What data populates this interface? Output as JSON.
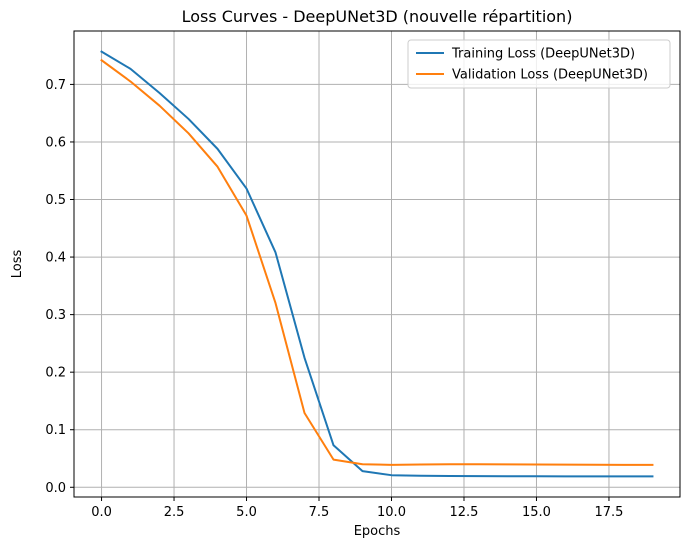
{
  "chart_data": {
    "type": "line",
    "title": "Loss Curves - DeepUNet3D (nouvelle répartition)",
    "xlabel": "Epochs",
    "ylabel": "Loss",
    "xlim": [
      -0.95,
      19.95
    ],
    "ylim": [
      -0.0169,
      0.7928
    ],
    "xticks": [
      0.0,
      2.5,
      5.0,
      7.5,
      10.0,
      12.5,
      15.0,
      17.5
    ],
    "xtick_labels": [
      "0.0",
      "2.5",
      "5.0",
      "7.5",
      "10.0",
      "12.5",
      "15.0",
      "17.5"
    ],
    "yticks": [
      0.0,
      0.1,
      0.2,
      0.3,
      0.4,
      0.5,
      0.6,
      0.7
    ],
    "ytick_labels": [
      "0.0",
      "0.1",
      "0.2",
      "0.3",
      "0.4",
      "0.5",
      "0.6",
      "0.7"
    ],
    "grid": true,
    "legend_position": "top-right",
    "x": [
      0,
      1,
      2,
      3,
      4,
      5,
      6,
      7,
      8,
      9,
      10,
      11,
      12,
      13,
      14,
      15,
      16,
      17,
      18,
      19
    ],
    "series": [
      {
        "name": "Training Loss (DeepUNet3D)",
        "color": "#1f77b4",
        "values": [
          0.757,
          0.727,
          0.685,
          0.64,
          0.588,
          0.519,
          0.408,
          0.225,
          0.073,
          0.028,
          0.021,
          0.02,
          0.0195,
          0.0193,
          0.0192,
          0.0191,
          0.019,
          0.019,
          0.019,
          0.019
        ]
      },
      {
        "name": "Validation Loss (DeepUNet3D)",
        "color": "#ff7f0e",
        "values": [
          0.742,
          0.705,
          0.663,
          0.615,
          0.557,
          0.472,
          0.32,
          0.129,
          0.048,
          0.04,
          0.039,
          0.0395,
          0.04,
          0.04,
          0.0398,
          0.0396,
          0.0394,
          0.0392,
          0.039,
          0.039
        ]
      }
    ]
  }
}
